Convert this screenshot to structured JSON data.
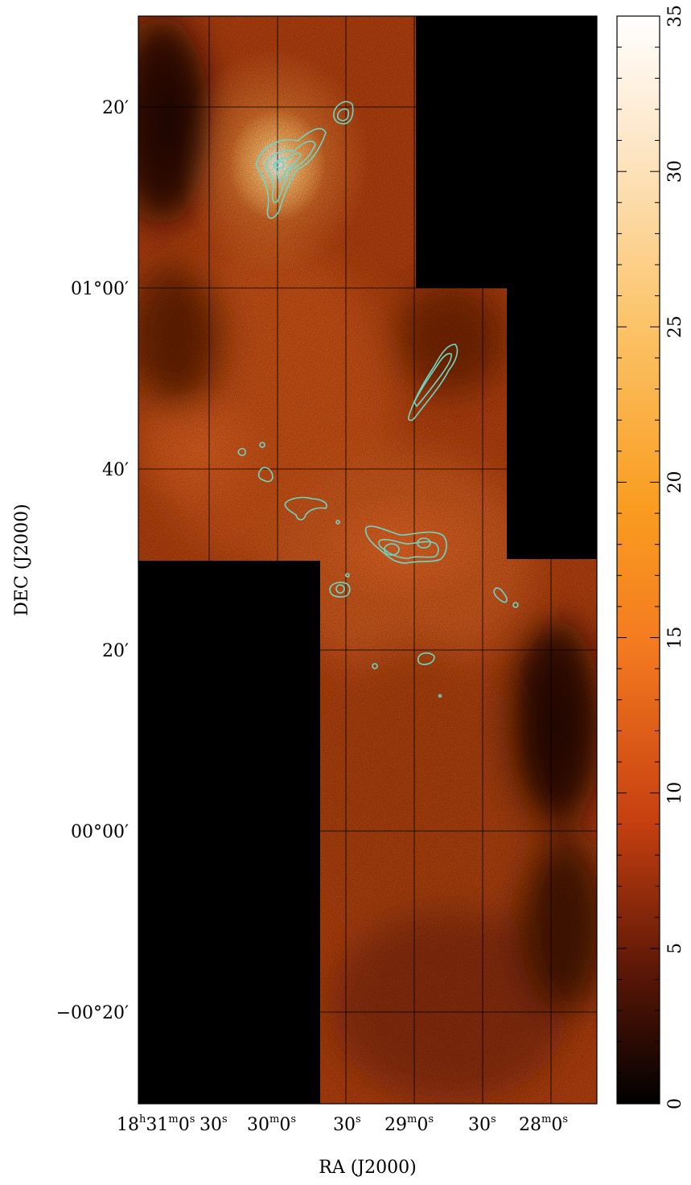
{
  "figure": {
    "x_axis": {
      "label": "RA (J2000)",
      "ticks": [
        {
          "h": "18",
          "hs": "h",
          "m": "31",
          "ms": "m",
          "s": "0",
          "ss": "s"
        },
        {
          "s": "30",
          "ss": "s"
        },
        {
          "m": "30",
          "ms": "m",
          "s": "0",
          "ss": "s"
        },
        {
          "s": "30",
          "ss": "s"
        },
        {
          "m": "29",
          "ms": "m",
          "s": "0",
          "ss": "s"
        },
        {
          "s": "30",
          "ss": "s"
        },
        {
          "m": "28",
          "ms": "m",
          "s": "0",
          "ss": "s"
        }
      ]
    },
    "y_axis": {
      "label": "DEC (J2000)",
      "ticks": [
        {
          "text": "20′"
        },
        {
          "text": "01°00′"
        },
        {
          "text": "40′"
        },
        {
          "text": "20′"
        },
        {
          "text": "00°00′"
        },
        {
          "text": "−00°20′"
        }
      ]
    },
    "colorbar": {
      "ticks": [
        "0",
        "5",
        "10",
        "15",
        "20",
        "25",
        "30",
        "35"
      ],
      "min": 0,
      "max": 35,
      "colormap": "black-red-orange-white (heat)"
    },
    "image": {
      "colors": {
        "background_masked": "#000000",
        "emission_low": "#8a2e08",
        "emission_mid": "#d8551c",
        "emission_high": "#ffb060",
        "emission_peak": "#ffffff",
        "contour": "#6fd6c4",
        "grid": "#000000"
      }
    }
  }
}
